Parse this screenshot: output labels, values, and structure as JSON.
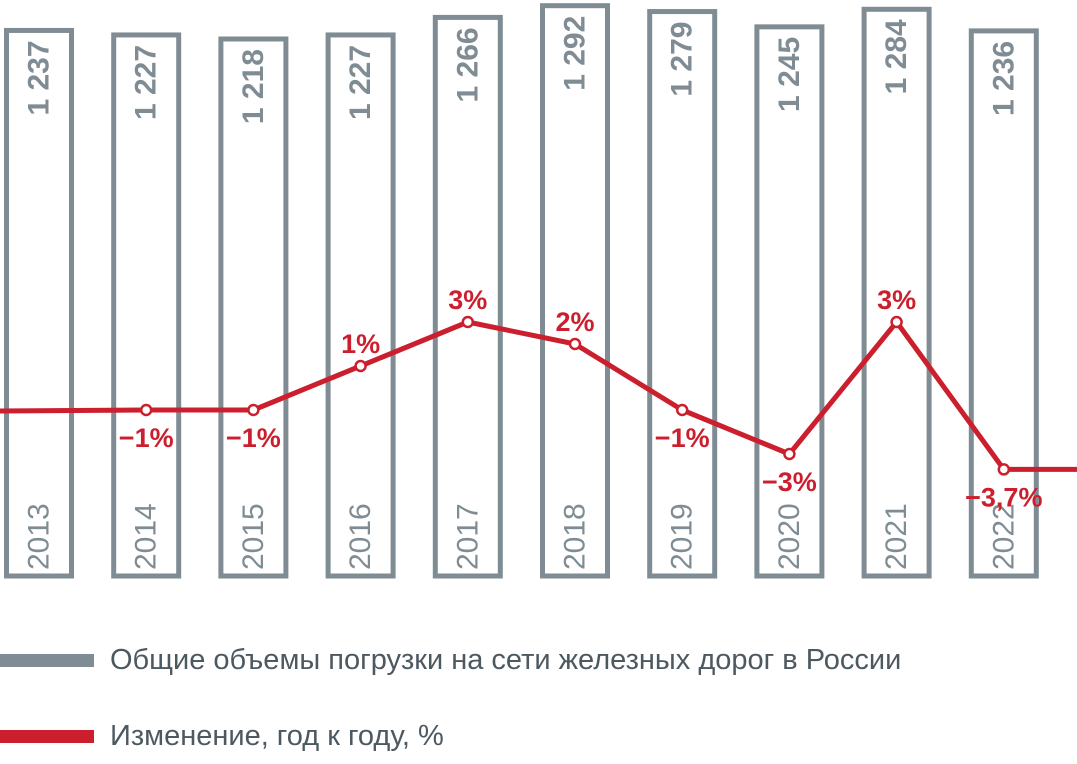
{
  "colors": {
    "bar": "#7f8c94",
    "line": "#cc1f2e",
    "text": "#4d5961"
  },
  "chart_data": {
    "type": "bar",
    "categories": [
      "2013",
      "2014",
      "2015",
      "2016",
      "2017",
      "2018",
      "2019",
      "2020",
      "2021",
      "2022"
    ],
    "series": [
      {
        "values": [
          1237,
          1227,
          1218,
          1227,
          1266,
          1292,
          1279,
          1245,
          1284,
          1236
        ],
        "value_labels": [
          "1 237",
          "1 227",
          "1 218",
          "1 227",
          "1 266",
          "1 292",
          "1 279",
          "1 245",
          "1 284",
          "1 236"
        ]
      },
      {
        "type": "line",
        "values": [
          null,
          -1,
          -1,
          1,
          3,
          2,
          -1,
          -3,
          3,
          -3.7
        ],
        "value_labels": [
          "",
          "−1%",
          "−1%",
          "1%",
          "3%",
          "2%",
          "−1%",
          "−3%",
          "3%",
          "−3,7%"
        ]
      }
    ],
    "legend": [
      {
        "label": "Общие объемы погрузки на сети железных дорог в России"
      },
      {
        "label": "Изменение, год к году, %"
      }
    ],
    "legend_position": "bottom-left",
    "grid": false
  }
}
